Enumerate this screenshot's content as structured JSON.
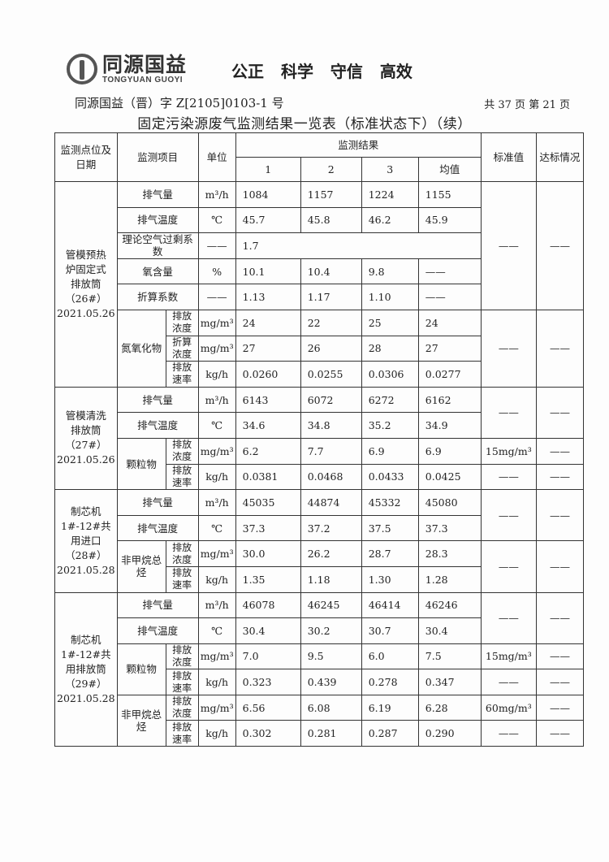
{
  "header": {
    "logo_cn": "同源国益",
    "logo_en": "TONGYUAN GUOYI",
    "slogan": "公正 科学 守信 高效",
    "doc_number": "同源国益（晋）字 Z[2105]0103-1 号",
    "page_info": "共 37 页  第 21 页",
    "title": "固定污染源废气监测结果一览表（标准状态下）（续）"
  },
  "table": {
    "headers": {
      "site": "监测点位及日期",
      "item": "监测项目",
      "unit": "单位",
      "results": "监测结果",
      "cols": [
        "1",
        "2",
        "3",
        "均值"
      ],
      "std": "标准值",
      "pass": "达标情况"
    },
    "groups": [
      {
        "site": [
          "管模预热",
          "炉固定式",
          "排放筒",
          "（26#）",
          "2021.05.26"
        ],
        "rows": [
          {
            "item": "排气量",
            "unit": "m³/h",
            "values": [
              "1084",
              "1157",
              "1224",
              "1155"
            ],
            "std": "——",
            "pass": "——"
          },
          {
            "item": "排气温度",
            "unit": "℃",
            "values": [
              "45.7",
              "45.8",
              "46.2",
              "45.9"
            ],
            "std": null,
            "pass": null
          },
          {
            "item": "理论空气过剩系数",
            "unit": "——",
            "merged_value": "1.7",
            "std": null,
            "pass": null
          },
          {
            "item": "氧含量",
            "unit": "%",
            "values": [
              "10.1",
              "10.4",
              "9.8",
              "——"
            ],
            "std": null,
            "pass": null
          },
          {
            "item": "折算系数",
            "unit": "——",
            "values": [
              "1.13",
              "1.17",
              "1.10",
              "——"
            ],
            "std": null,
            "pass": null
          },
          {
            "cat": "氮氧化物",
            "sub": "排放浓度",
            "unit": "mg/m³",
            "values": [
              "24",
              "22",
              "25",
              "24"
            ],
            "std": "——",
            "pass": "——"
          },
          {
            "cat": null,
            "sub": "折算浓度",
            "unit": "mg/m³",
            "values": [
              "27",
              "26",
              "28",
              "27"
            ],
            "std": null,
            "pass": null
          },
          {
            "cat": null,
            "sub": "排放速率",
            "unit": "kg/h",
            "values": [
              "0.0260",
              "0.0255",
              "0.0306",
              "0.0277"
            ],
            "std": null,
            "pass": null
          }
        ]
      },
      {
        "site": [
          "管模清洗",
          "排放筒",
          "（27#）",
          "2021.05.26"
        ],
        "rows": [
          {
            "item": "排气量",
            "unit": "m³/h",
            "values": [
              "6143",
              "6072",
              "6272",
              "6162"
            ],
            "std": "——",
            "pass": "——"
          },
          {
            "item": "排气温度",
            "unit": "℃",
            "values": [
              "34.6",
              "34.8",
              "35.2",
              "34.9"
            ],
            "std": null,
            "pass": null
          },
          {
            "cat": "颗粒物",
            "sub": "排放浓度",
            "unit": "mg/m³",
            "values": [
              "6.2",
              "7.7",
              "6.9",
              "6.9"
            ],
            "std": "15mg/m³",
            "pass": "——"
          },
          {
            "cat": null,
            "sub": "排放速率",
            "unit": "kg/h",
            "values": [
              "0.0381",
              "0.0468",
              "0.0433",
              "0.0425"
            ],
            "std": "——",
            "pass": "——"
          }
        ]
      },
      {
        "site": [
          "制芯机",
          "1#-12#共",
          "用进口",
          "（28#）",
          "2021.05.28"
        ],
        "rows": [
          {
            "item": "排气量",
            "unit": "m³/h",
            "values": [
              "45035",
              "44874",
              "45332",
              "45080"
            ],
            "std": "——",
            "pass": "——"
          },
          {
            "item": "排气温度",
            "unit": "℃",
            "values": [
              "37.3",
              "37.2",
              "37.5",
              "37.3"
            ],
            "std": null,
            "pass": null
          },
          {
            "cat": "非甲烷总烃",
            "sub": "排放浓度",
            "unit": "mg/m³",
            "values": [
              "30.0",
              "26.2",
              "28.7",
              "28.3"
            ],
            "std": "——",
            "pass": "——"
          },
          {
            "cat": null,
            "sub": "排放速率",
            "unit": "kg/h",
            "values": [
              "1.35",
              "1.18",
              "1.30",
              "1.28"
            ],
            "std": null,
            "pass": null
          }
        ]
      },
      {
        "site": [
          "制芯机",
          "1#-12#共",
          "用排放筒",
          "（29#）",
          "2021.05.28"
        ],
        "rows": [
          {
            "item": "排气量",
            "unit": "m³/h",
            "values": [
              "46078",
              "46245",
              "46414",
              "46246"
            ],
            "std": "——",
            "pass": "——"
          },
          {
            "item": "排气温度",
            "unit": "℃",
            "values": [
              "30.4",
              "30.2",
              "30.7",
              "30.4"
            ],
            "std": null,
            "pass": null
          },
          {
            "cat": "颗粒物",
            "sub": "排放浓度",
            "unit": "mg/m³",
            "values": [
              "7.0",
              "9.5",
              "6.0",
              "7.5"
            ],
            "std": "15mg/m³",
            "pass": "——"
          },
          {
            "cat": null,
            "sub": "排放速率",
            "unit": "kg/h",
            "values": [
              "0.323",
              "0.439",
              "0.278",
              "0.347"
            ],
            "std": "——",
            "pass": "——"
          },
          {
            "cat": "非甲烷总烃",
            "sub": "排放浓度",
            "unit": "mg/m³",
            "values": [
              "6.56",
              "6.08",
              "6.19",
              "6.28"
            ],
            "std": "60mg/m³",
            "pass": "——"
          },
          {
            "cat": null,
            "sub": "排放速率",
            "unit": "kg/h",
            "values": [
              "0.302",
              "0.281",
              "0.287",
              "0.290"
            ],
            "std": "——",
            "pass": "——"
          }
        ]
      }
    ]
  }
}
